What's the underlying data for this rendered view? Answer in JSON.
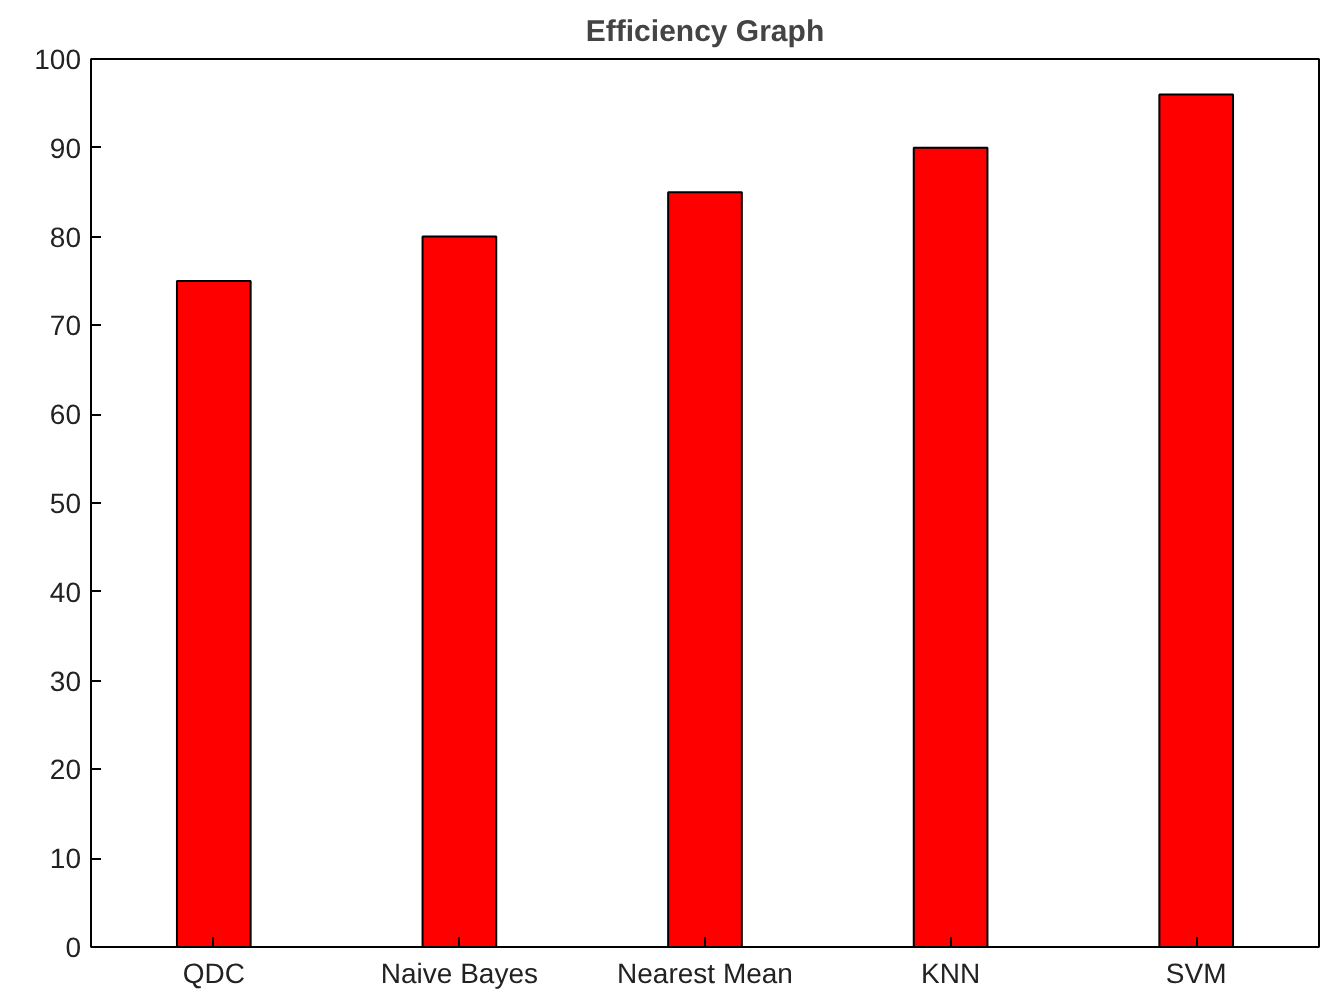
{
  "chart_data": {
    "type": "bar",
    "title": "Efficiency Graph",
    "categories": [
      "QDC",
      "Naive Bayes",
      "Nearest Mean",
      "KNN",
      "SVM"
    ],
    "values": [
      75,
      80,
      85,
      90,
      96
    ],
    "color": "#ff0000",
    "ylim": [
      0,
      100
    ],
    "yticks": [
      0,
      10,
      20,
      30,
      40,
      50,
      60,
      70,
      80,
      90,
      100
    ],
    "grid": false
  }
}
